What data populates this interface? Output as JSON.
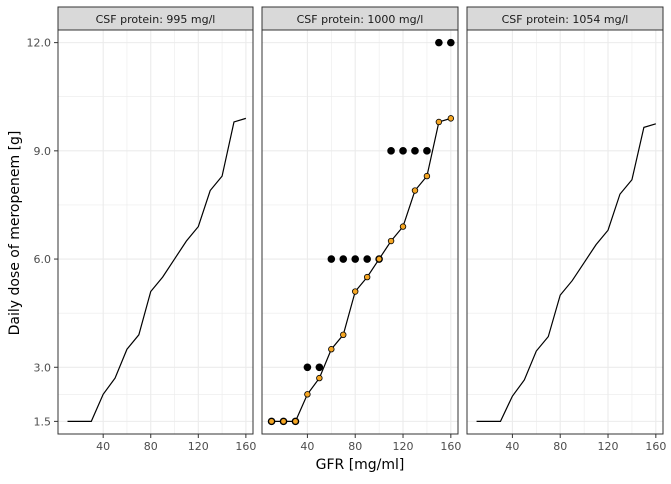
{
  "chart_data": {
    "type": "line",
    "facet_label_prefix": "CSF protein: ",
    "xlabel": "GFR [mg/ml]",
    "ylabel": "Daily dose of meropenem [g]",
    "x_ticks": [
      40,
      80,
      120,
      160
    ],
    "y_ticks": [
      1.5,
      3.0,
      6.0,
      9.0,
      12.0
    ],
    "y_tick_labels": [
      "1.5",
      "3.0",
      "6.0",
      "9.0",
      "12.0"
    ],
    "xlim": [
      2,
      166
    ],
    "ylim": [
      1.15,
      12.35
    ],
    "grid": true,
    "colors": {
      "line": "#000000",
      "point_fill": "#F5A623",
      "dot": "#000000",
      "strip_bg": "#D9D9D9",
      "grid": "#EBEBEB"
    },
    "facets": [
      {
        "label": "CSF protein: 995 mg/l",
        "line": {
          "x": [
            10,
            20,
            30,
            40,
            50,
            60,
            70,
            80,
            90,
            100,
            110,
            120,
            130,
            140,
            150,
            160
          ],
          "y": [
            1.5,
            1.5,
            1.5,
            2.25,
            2.7,
            3.5,
            3.9,
            5.1,
            5.5,
            6.0,
            6.5,
            6.9,
            7.9,
            8.3,
            9.8,
            9.9
          ]
        }
      },
      {
        "label": "CSF protein: 1000 mg/l",
        "line": {
          "x": [
            10,
            20,
            30,
            40,
            50,
            60,
            70,
            80,
            90,
            100,
            110,
            120,
            130,
            140,
            150,
            160
          ],
          "y": [
            1.5,
            1.5,
            1.5,
            2.25,
            2.7,
            3.5,
            3.9,
            5.1,
            5.5,
            6.0,
            6.5,
            6.9,
            7.9,
            8.3,
            9.8,
            9.9
          ]
        },
        "show_line_points": true,
        "dots": {
          "x": [
            10,
            20,
            30,
            40,
            50,
            60,
            70,
            80,
            90,
            100,
            110,
            120,
            130,
            140,
            150,
            160
          ],
          "y": [
            1.5,
            1.5,
            1.5,
            3.0,
            3.0,
            6.0,
            6.0,
            6.0,
            6.0,
            6.0,
            9.0,
            9.0,
            9.0,
            9.0,
            12.0,
            12.0
          ]
        }
      },
      {
        "label": "CSF protein: 1054 mg/l",
        "line": {
          "x": [
            10,
            20,
            30,
            40,
            50,
            60,
            70,
            80,
            90,
            100,
            110,
            120,
            130,
            140,
            150,
            160
          ],
          "y": [
            1.5,
            1.5,
            1.5,
            2.2,
            2.65,
            3.45,
            3.85,
            5.0,
            5.4,
            5.9,
            6.4,
            6.8,
            7.8,
            8.2,
            9.65,
            9.75
          ]
        }
      }
    ]
  }
}
